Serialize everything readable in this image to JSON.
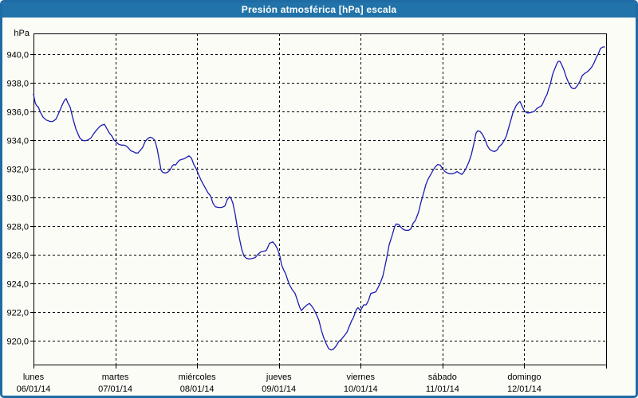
{
  "window": {
    "title": "Presión atmosférica [hPa] escala"
  },
  "colors": {
    "window_border": "#1e6ba6",
    "titlebar_bg": "#2173a9",
    "titlebar_text": "#ffffff",
    "plot_bg": "#fcfcf7",
    "grid": "#000000",
    "axis": "#000000",
    "line": "#1c1cb2",
    "label_text": "#000000"
  },
  "chart_data": {
    "type": "line",
    "title": "Presión atmosférica [hPa] escala",
    "ylabel": "hPa",
    "xlabel": "",
    "grid": "dashed",
    "legend": "none",
    "ylim_visible": [
      918.3,
      941.4
    ],
    "xlim_days": [
      0,
      7
    ],
    "y_ticks": [
      {
        "v": 940,
        "label": "940,0"
      },
      {
        "v": 938,
        "label": "938,0"
      },
      {
        "v": 936,
        "label": "936,0"
      },
      {
        "v": 934,
        "label": "934,0"
      },
      {
        "v": 932,
        "label": "932,0"
      },
      {
        "v": 930,
        "label": "930,0"
      },
      {
        "v": 928,
        "label": "928,0"
      },
      {
        "v": 926,
        "label": "926,0"
      },
      {
        "v": 924,
        "label": "924,0"
      },
      {
        "v": 922,
        "label": "922,0"
      },
      {
        "v": 920,
        "label": "920,0"
      }
    ],
    "x_days": [
      {
        "name": "lunes",
        "date": "06/01/14"
      },
      {
        "name": "martes",
        "date": "07/01/14"
      },
      {
        "name": "miércoles",
        "date": "08/01/14"
      },
      {
        "name": "jueves",
        "date": "09/01/14"
      },
      {
        "name": "viernes",
        "date": "10/01/14"
      },
      {
        "name": "sábado",
        "date": "11/01/14"
      },
      {
        "name": "domingo",
        "date": "12/01/14"
      }
    ],
    "series": [
      {
        "name": "Presión atmosférica",
        "unit": "hPa",
        "x_unit": "days_since_2014-01-06",
        "points": [
          [
            0,
            937.2
          ],
          [
            0.02,
            936.6
          ],
          [
            0.039,
            936.4
          ],
          [
            0.059,
            936.3
          ],
          [
            0.088,
            935.9
          ],
          [
            0.117,
            935.6
          ],
          [
            0.156,
            935.4
          ],
          [
            0.205,
            935.3
          ],
          [
            0.234,
            935.3
          ],
          [
            0.273,
            935.45
          ],
          [
            0.302,
            935.8
          ],
          [
            0.351,
            936.45
          ],
          [
            0.38,
            936.8
          ],
          [
            0.4,
            936.9
          ],
          [
            0.419,
            936.6
          ],
          [
            0.448,
            936.3
          ],
          [
            0.478,
            935.6
          ],
          [
            0.517,
            934.8
          ],
          [
            0.546,
            934.4
          ],
          [
            0.566,
            934.15
          ],
          [
            0.595,
            934.0
          ],
          [
            0.624,
            933.95
          ],
          [
            0.663,
            934.0
          ],
          [
            0.702,
            934.15
          ],
          [
            0.731,
            934.4
          ],
          [
            0.77,
            934.7
          ],
          [
            0.809,
            934.95
          ],
          [
            0.839,
            935.05
          ],
          [
            0.868,
            935.1
          ],
          [
            0.897,
            934.8
          ],
          [
            0.926,
            934.5
          ],
          [
            0.955,
            934.3
          ],
          [
            0.985,
            934.0
          ],
          [
            1.014,
            933.85
          ],
          [
            1.043,
            933.7
          ],
          [
            1.073,
            933.65
          ],
          [
            1.102,
            933.65
          ],
          [
            1.131,
            933.6
          ],
          [
            1.16,
            933.45
          ],
          [
            1.19,
            933.25
          ],
          [
            1.219,
            933.2
          ],
          [
            1.248,
            933.1
          ],
          [
            1.277,
            933.1
          ],
          [
            1.307,
            933.3
          ],
          [
            1.336,
            933.5
          ],
          [
            1.365,
            933.9
          ],
          [
            1.394,
            934.1
          ],
          [
            1.424,
            934.2
          ],
          [
            1.453,
            934.15
          ],
          [
            1.482,
            934.0
          ],
          [
            1.511,
            933.4
          ],
          [
            1.54,
            932.5
          ],
          [
            1.56,
            931.9
          ],
          [
            1.58,
            931.75
          ],
          [
            1.609,
            931.7
          ],
          [
            1.638,
            931.75
          ],
          [
            1.667,
            931.9
          ],
          [
            1.697,
            932.2
          ],
          [
            1.716,
            932.3
          ],
          [
            1.735,
            932.25
          ],
          [
            1.755,
            932.4
          ],
          [
            1.784,
            932.6
          ],
          [
            1.813,
            932.65
          ],
          [
            1.843,
            932.7
          ],
          [
            1.872,
            932.8
          ],
          [
            1.901,
            932.9
          ],
          [
            1.93,
            932.75
          ],
          [
            1.96,
            932.3
          ],
          [
            1.989,
            932.0
          ],
          [
            2.018,
            931.6
          ],
          [
            2.048,
            931.2
          ],
          [
            2.077,
            930.9
          ],
          [
            2.106,
            930.6
          ],
          [
            2.135,
            930.3
          ],
          [
            2.165,
            930.1
          ],
          [
            2.194,
            929.6
          ],
          [
            2.223,
            929.35
          ],
          [
            2.262,
            929.3
          ],
          [
            2.301,
            929.3
          ],
          [
            2.34,
            929.4
          ],
          [
            2.369,
            929.85
          ],
          [
            2.398,
            930.05
          ],
          [
            2.418,
            929.9
          ],
          [
            2.437,
            929.6
          ],
          [
            2.467,
            928.8
          ],
          [
            2.486,
            928.1
          ],
          [
            2.515,
            927.2
          ],
          [
            2.545,
            926.4
          ],
          [
            2.574,
            925.9
          ],
          [
            2.603,
            925.75
          ],
          [
            2.642,
            925.7
          ],
          [
            2.681,
            925.75
          ],
          [
            2.71,
            925.8
          ],
          [
            2.74,
            926.0
          ],
          [
            2.779,
            926.2
          ],
          [
            2.818,
            926.25
          ],
          [
            2.847,
            926.3
          ],
          [
            2.886,
            926.8
          ],
          [
            2.925,
            926.9
          ],
          [
            2.954,
            926.7
          ],
          [
            2.983,
            926.4
          ],
          [
            3.013,
            925.9
          ],
          [
            3.032,
            925.3
          ],
          [
            3.061,
            924.9
          ],
          [
            3.081,
            924.7
          ],
          [
            3.11,
            924.2
          ],
          [
            3.13,
            923.9
          ],
          [
            3.159,
            923.6
          ],
          [
            3.198,
            923.3
          ],
          [
            3.227,
            922.8
          ],
          [
            3.256,
            922.3
          ],
          [
            3.276,
            922.1
          ],
          [
            3.305,
            922.3
          ],
          [
            3.344,
            922.5
          ],
          [
            3.374,
            922.6
          ],
          [
            3.403,
            922.4
          ],
          [
            3.432,
            922.15
          ],
          [
            3.461,
            921.8
          ],
          [
            3.49,
            921.4
          ],
          [
            3.52,
            920.7
          ],
          [
            3.549,
            920.2
          ],
          [
            3.578,
            919.8
          ],
          [
            3.607,
            919.45
          ],
          [
            3.637,
            919.35
          ],
          [
            3.666,
            919.4
          ],
          [
            3.695,
            919.6
          ],
          [
            3.734,
            919.95
          ],
          [
            3.764,
            920.1
          ],
          [
            3.793,
            920.3
          ],
          [
            3.832,
            920.6
          ],
          [
            3.861,
            921.0
          ],
          [
            3.89,
            921.4
          ],
          [
            3.91,
            921.6
          ],
          [
            3.929,
            921.9
          ],
          [
            3.949,
            922.2
          ],
          [
            3.968,
            922.3
          ],
          [
            3.997,
            922.1
          ],
          [
            4.017,
            922.3
          ],
          [
            4.036,
            922.5
          ],
          [
            4.066,
            922.5
          ],
          [
            4.095,
            922.8
          ],
          [
            4.124,
            923.3
          ],
          [
            4.153,
            923.35
          ],
          [
            4.183,
            923.4
          ],
          [
            4.212,
            923.7
          ],
          [
            4.241,
            924.05
          ],
          [
            4.27,
            924.5
          ],
          [
            4.29,
            925.0
          ],
          [
            4.319,
            925.8
          ],
          [
            4.348,
            926.7
          ],
          [
            4.387,
            927.4
          ],
          [
            4.417,
            928.0
          ],
          [
            4.436,
            928.15
          ],
          [
            4.466,
            928.1
          ],
          [
            4.495,
            927.9
          ],
          [
            4.524,
            927.75
          ],
          [
            4.553,
            927.7
          ],
          [
            4.583,
            927.7
          ],
          [
            4.612,
            927.8
          ],
          [
            4.641,
            928.2
          ],
          [
            4.67,
            928.4
          ],
          [
            4.709,
            929.0
          ],
          [
            4.738,
            929.7
          ],
          [
            4.768,
            930.3
          ],
          [
            4.797,
            930.9
          ],
          [
            4.826,
            931.3
          ],
          [
            4.856,
            931.6
          ],
          [
            4.885,
            931.9
          ],
          [
            4.914,
            932.15
          ],
          [
            4.943,
            932.3
          ],
          [
            4.973,
            932.25
          ],
          [
            5.002,
            932.0
          ],
          [
            5.031,
            931.8
          ],
          [
            5.06,
            931.7
          ],
          [
            5.09,
            931.65
          ],
          [
            5.119,
            931.65
          ],
          [
            5.148,
            931.7
          ],
          [
            5.177,
            931.8
          ],
          [
            5.207,
            931.7
          ],
          [
            5.236,
            931.6
          ],
          [
            5.265,
            931.8
          ],
          [
            5.294,
            932.1
          ],
          [
            5.324,
            932.5
          ],
          [
            5.353,
            933.0
          ],
          [
            5.382,
            933.7
          ],
          [
            5.411,
            934.5
          ],
          [
            5.431,
            934.65
          ],
          [
            5.46,
            934.6
          ],
          [
            5.489,
            934.4
          ],
          [
            5.519,
            934.05
          ],
          [
            5.548,
            933.6
          ],
          [
            5.577,
            933.35
          ],
          [
            5.606,
            933.25
          ],
          [
            5.636,
            933.2
          ],
          [
            5.665,
            933.3
          ],
          [
            5.694,
            933.55
          ],
          [
            5.723,
            933.7
          ],
          [
            5.752,
            933.95
          ],
          [
            5.782,
            934.3
          ],
          [
            5.801,
            934.7
          ],
          [
            5.831,
            935.3
          ],
          [
            5.86,
            935.9
          ],
          [
            5.899,
            936.4
          ],
          [
            5.928,
            936.6
          ],
          [
            5.947,
            936.7
          ],
          [
            5.977,
            936.3
          ],
          [
            6.006,
            936.0
          ],
          [
            6.035,
            935.9
          ],
          [
            6.064,
            935.9
          ],
          [
            6.094,
            935.95
          ],
          [
            6.123,
            936.0
          ],
          [
            6.152,
            936.2
          ],
          [
            6.181,
            936.3
          ],
          [
            6.211,
            936.4
          ],
          [
            6.23,
            936.6
          ],
          [
            6.25,
            936.9
          ],
          [
            6.279,
            937.2
          ],
          [
            6.299,
            937.6
          ],
          [
            6.318,
            937.9
          ],
          [
            6.347,
            938.6
          ],
          [
            6.367,
            938.9
          ],
          [
            6.396,
            939.3
          ],
          [
            6.415,
            939.5
          ],
          [
            6.435,
            939.5
          ],
          [
            6.454,
            939.3
          ],
          [
            6.484,
            938.9
          ],
          [
            6.513,
            938.4
          ],
          [
            6.542,
            938.0
          ],
          [
            6.571,
            937.7
          ],
          [
            6.591,
            937.6
          ],
          [
            6.62,
            937.6
          ],
          [
            6.649,
            937.8
          ],
          [
            6.679,
            938.1
          ],
          [
            6.708,
            938.5
          ],
          [
            6.737,
            938.65
          ],
          [
            6.766,
            938.75
          ],
          [
            6.796,
            938.9
          ],
          [
            6.825,
            939.1
          ],
          [
            6.854,
            939.4
          ],
          [
            6.883,
            939.8
          ],
          [
            6.903,
            940.0
          ],
          [
            6.932,
            940.4
          ],
          [
            6.961,
            940.5
          ],
          [
            6.981,
            940.5
          ]
        ]
      }
    ]
  }
}
